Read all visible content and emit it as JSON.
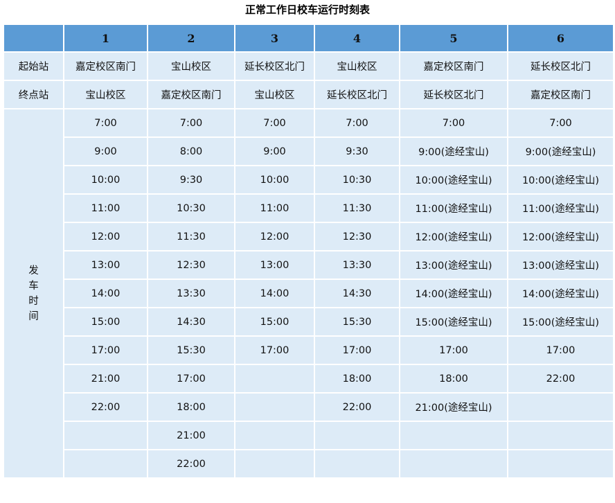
{
  "title": "正常工作日校车运行时刻表",
  "row_labels": {
    "start": "起始站",
    "end": "终点站",
    "times": "发\n车\n时\n间"
  },
  "colors": {
    "header_bg": "#5b9bd5",
    "cell_bg": "#ddebf7"
  },
  "routes": [
    {
      "no": "1",
      "start": "嘉定校区南门",
      "end": "宝山校区",
      "times": [
        "7:00",
        "9:00",
        "10:00",
        "11:00",
        "12:00",
        "13:00",
        "14:00",
        "15:00",
        "17:00",
        "21:00",
        "22:00"
      ]
    },
    {
      "no": "2",
      "start": "宝山校区",
      "end": "嘉定校区南门",
      "times": [
        "7:00",
        "8:00",
        "9:30",
        "10:30",
        "11:30",
        "12:30",
        "13:30",
        "14:30",
        "15:30",
        "17:00",
        "18:00",
        "21:00",
        "22:00"
      ]
    },
    {
      "no": "3",
      "start": "延长校区北门",
      "end": "宝山校区",
      "times": [
        "7:00",
        "9:00",
        "10:00",
        "11:00",
        "12:00",
        "13:00",
        "14:00",
        "15:00",
        "17:00"
      ]
    },
    {
      "no": "4",
      "start": "宝山校区",
      "end": "延长校区北门",
      "times": [
        "7:00",
        "9:30",
        "10:30",
        "11:30",
        "12:30",
        "13:30",
        "14:30",
        "15:30",
        "17:00",
        "18:00",
        "22:00"
      ]
    },
    {
      "no": "5",
      "start": "嘉定校区南门",
      "end": "延长校区北门",
      "times": [
        "7:00",
        "9:00(途经宝山)",
        "10:00(途经宝山)",
        "11:00(途经宝山)",
        "12:00(途经宝山)",
        "13:00(途经宝山)",
        "14:00(途经宝山)",
        "15:00(途经宝山)",
        "17:00",
        "18:00",
        "21:00(途经宝山)"
      ]
    },
    {
      "no": "6",
      "start": "延长校区北门",
      "end": "嘉定校区南门",
      "times": [
        "7:00",
        "9:00(途经宝山)",
        "10:00(途经宝山)",
        "11:00(途经宝山)",
        "12:00(途经宝山)",
        "13:00(途经宝山)",
        "14:00(途经宝山)",
        "15:00(途经宝山)",
        "17:00",
        "22:00"
      ]
    }
  ]
}
